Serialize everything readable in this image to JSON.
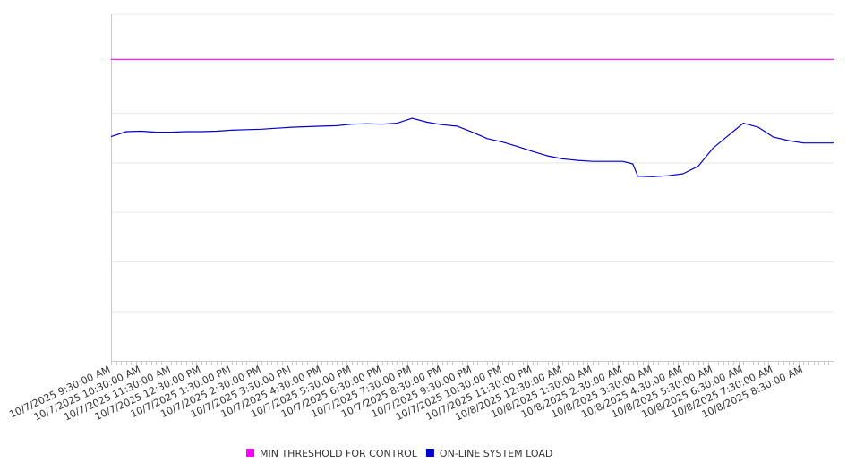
{
  "chart_data": {
    "type": "line",
    "title": "",
    "xlabel": "",
    "ylabel": "",
    "x_tick_labels": [
      "10/7/2025 9:30:00 AM",
      "10/7/2025 10:30:00 AM",
      "10/7/2025 11:30:00 AM",
      "10/7/2025 12:30:00 PM",
      "10/7/2025 1:30:00 PM",
      "10/7/2025 2:30:00 PM",
      "10/7/2025 3:30:00 PM",
      "10/7/2025 4:30:00 PM",
      "10/7/2025 5:30:00 PM",
      "10/7/2025 6:30:00 PM",
      "10/7/2025 7:30:00 PM",
      "10/7/2025 8:30:00 PM",
      "10/7/2025 9:30:00 PM",
      "10/7/2025 10:30:00 PM",
      "10/7/2025 11:30:00 PM",
      "10/8/2025 12:30:00 AM",
      "10/8/2025 1:30:00 AM",
      "10/8/2025 2:30:00 AM",
      "10/8/2025 3:30:00 AM",
      "10/8/2025 4:30:00 AM",
      "10/8/2025 5:30:00 AM",
      "10/8/2025 6:30:00 AM",
      "10/8/2025 7:30:00 AM",
      "10/8/2025 8:30:00 AM"
    ],
    "x_start": "10/7/2025 9:30:00 AM",
    "x_end": "10/8/2025 9:30:00 AM",
    "ylim": [
      0,
      7
    ],
    "grid": true,
    "legend_position": "bottom",
    "series": [
      {
        "name": "MIN THRESHOLD FOR CONTROL",
        "color": "#ff00ff",
        "x": [
          "10/7/2025 9:30:00 AM",
          "10/8/2025 9:30:00 AM"
        ],
        "values": [
          6.09,
          6.09
        ]
      },
      {
        "name": "ON-LINE SYSTEM LOAD",
        "color": "#0000cc",
        "x": [
          "10/7/2025 9:30:00 AM",
          "10/7/2025 10:00:00 AM",
          "10/7/2025 10:30:00 AM",
          "10/7/2025 11:00:00 AM",
          "10/7/2025 11:30:00 AM",
          "10/7/2025 12:00:00 PM",
          "10/7/2025 12:30:00 PM",
          "10/7/2025 1:00:00 PM",
          "10/7/2025 1:30:00 PM",
          "10/7/2025 2:00:00 PM",
          "10/7/2025 2:30:00 PM",
          "10/7/2025 3:00:00 PM",
          "10/7/2025 3:30:00 PM",
          "10/7/2025 4:00:00 PM",
          "10/7/2025 4:30:00 PM",
          "10/7/2025 5:00:00 PM",
          "10/7/2025 5:30:00 PM",
          "10/7/2025 6:00:00 PM",
          "10/7/2025 6:30:00 PM",
          "10/7/2025 7:00:00 PM",
          "10/7/2025 7:30:00 PM",
          "10/7/2025 8:00:00 PM",
          "10/7/2025 8:30:00 PM",
          "10/7/2025 9:00:00 PM",
          "10/7/2025 9:30:00 PM",
          "10/7/2025 10:00:00 PM",
          "10/7/2025 10:30:00 PM",
          "10/7/2025 11:00:00 PM",
          "10/7/2025 11:30:00 PM",
          "10/8/2025 12:00:00 AM",
          "10/8/2025 12:30:00 AM",
          "10/8/2025 1:00:00 AM",
          "10/8/2025 1:30:00 AM",
          "10/8/2025 2:00:00 AM",
          "10/8/2025 2:30:00 AM",
          "10/8/2025 2:50:00 AM",
          "10/8/2025 3:00:00 AM",
          "10/8/2025 3:30:00 AM",
          "10/8/2025 4:00:00 AM",
          "10/8/2025 4:30:00 AM",
          "10/8/2025 5:00:00 AM",
          "10/8/2025 5:30:00 AM",
          "10/8/2025 6:00:00 AM",
          "10/8/2025 6:30:00 AM",
          "10/8/2025 7:00:00 AM",
          "10/8/2025 7:30:00 AM",
          "10/8/2025 8:00:00 AM",
          "10/8/2025 8:30:00 AM",
          "10/8/2025 9:00:00 AM",
          "10/8/2025 9:30:00 AM"
        ],
        "values": [
          4.53,
          4.63,
          4.64,
          4.62,
          4.62,
          4.63,
          4.63,
          4.64,
          4.66,
          4.67,
          4.68,
          4.7,
          4.72,
          4.73,
          4.74,
          4.75,
          4.78,
          4.79,
          4.78,
          4.8,
          4.9,
          4.82,
          4.77,
          4.74,
          4.62,
          4.49,
          4.42,
          4.33,
          4.23,
          4.14,
          4.08,
          4.05,
          4.03,
          4.03,
          4.03,
          3.98,
          3.73,
          3.72,
          3.74,
          3.78,
          3.93,
          4.3,
          4.55,
          4.8,
          4.72,
          4.52,
          4.45,
          4.4,
          4.4,
          4.4
        ]
      }
    ]
  }
}
